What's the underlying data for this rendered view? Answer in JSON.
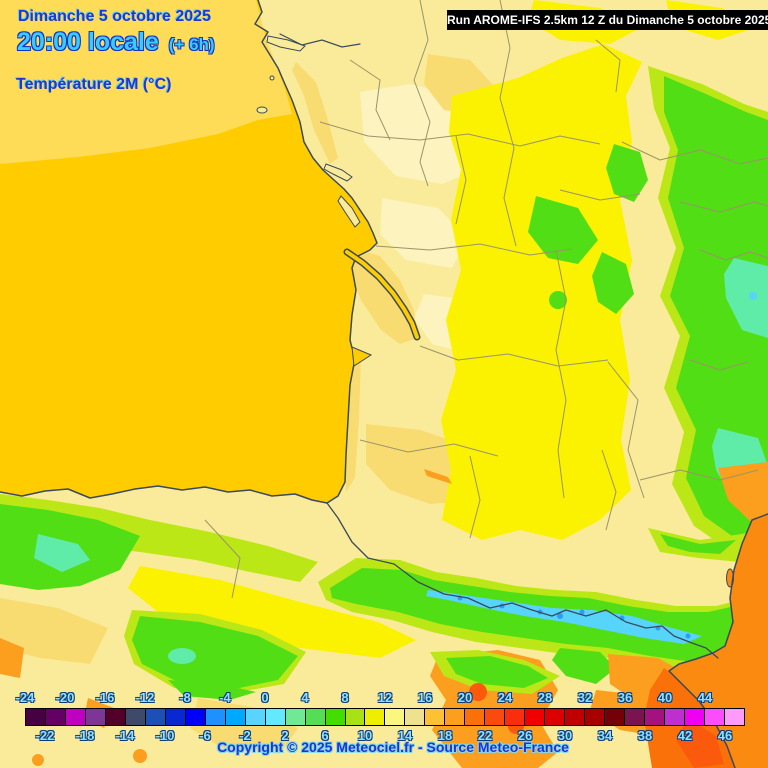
{
  "header": {
    "date": "Dimanche 5 octobre 2025",
    "time": "20:00 locale",
    "time_offset": "(+ 6h)",
    "parameter": "Température 2M (°C)"
  },
  "banner": {
    "text": "Run AROME-IFS 2.5km 12 Z du Dimanche 5 octobre 2025"
  },
  "footer": {
    "copyright": "Copyright © 2025 Meteociel.fr - Source Meteo-France"
  },
  "scale": {
    "labels_top": [
      "-24",
      "-20",
      "-16",
      "-12",
      "-8",
      "-4",
      "0",
      "4",
      "8",
      "12",
      "16",
      "20",
      "24",
      "28",
      "32",
      "36",
      "40",
      "44"
    ],
    "labels_bottom": [
      "-22",
      "-18",
      "-14",
      "-10",
      "-6",
      "-2",
      "2",
      "6",
      "10",
      "14",
      "18",
      "22",
      "26",
      "30",
      "34",
      "38",
      "42",
      "46"
    ],
    "cell_colors": [
      "#470042",
      "#640064",
      "#C000C0",
      "#7D3596",
      "#520029",
      "#3F4A6B",
      "#1C50B4",
      "#0A28D2",
      "#0000FA",
      "#1E90FF",
      "#00A8FF",
      "#59D3FF",
      "#63E9FF",
      "#70E896",
      "#55DD55",
      "#44DD00",
      "#A9E214",
      "#F0EE00",
      "#FBF67E",
      "#EFE28F",
      "#FCC233",
      "#FC9E1E",
      "#FB7109",
      "#FB4A0D",
      "#FA2E0C",
      "#F00000",
      "#DC0000",
      "#C00000",
      "#A80000",
      "#740008",
      "#7A1350",
      "#A3127E",
      "#BE2FD0",
      "#F000F0",
      "#FC4DFC",
      "#FD9BFD"
    ]
  },
  "map": {
    "palette": {
      "sea": "#FFCC00",
      "sea_light": "#FFDC58",
      "sea_med": "#FA8A10",
      "land_pale": "#FAEB9B",
      "land_cream": "#FCF3BE",
      "land_tan": "#F8DC72",
      "land_yellow": "#FBF201",
      "green_yellow": "#BCE716",
      "green": "#52DE14",
      "teal": "#5FEBA8",
      "cyan": "#57D4FA",
      "blue": "#2F9BF2",
      "orange": "#FC9E1E",
      "orange_deep": "#FB7109",
      "red_orange": "#FB5A0C",
      "coast": "#3A4A5A",
      "border_dept": "#9A9468"
    }
  }
}
